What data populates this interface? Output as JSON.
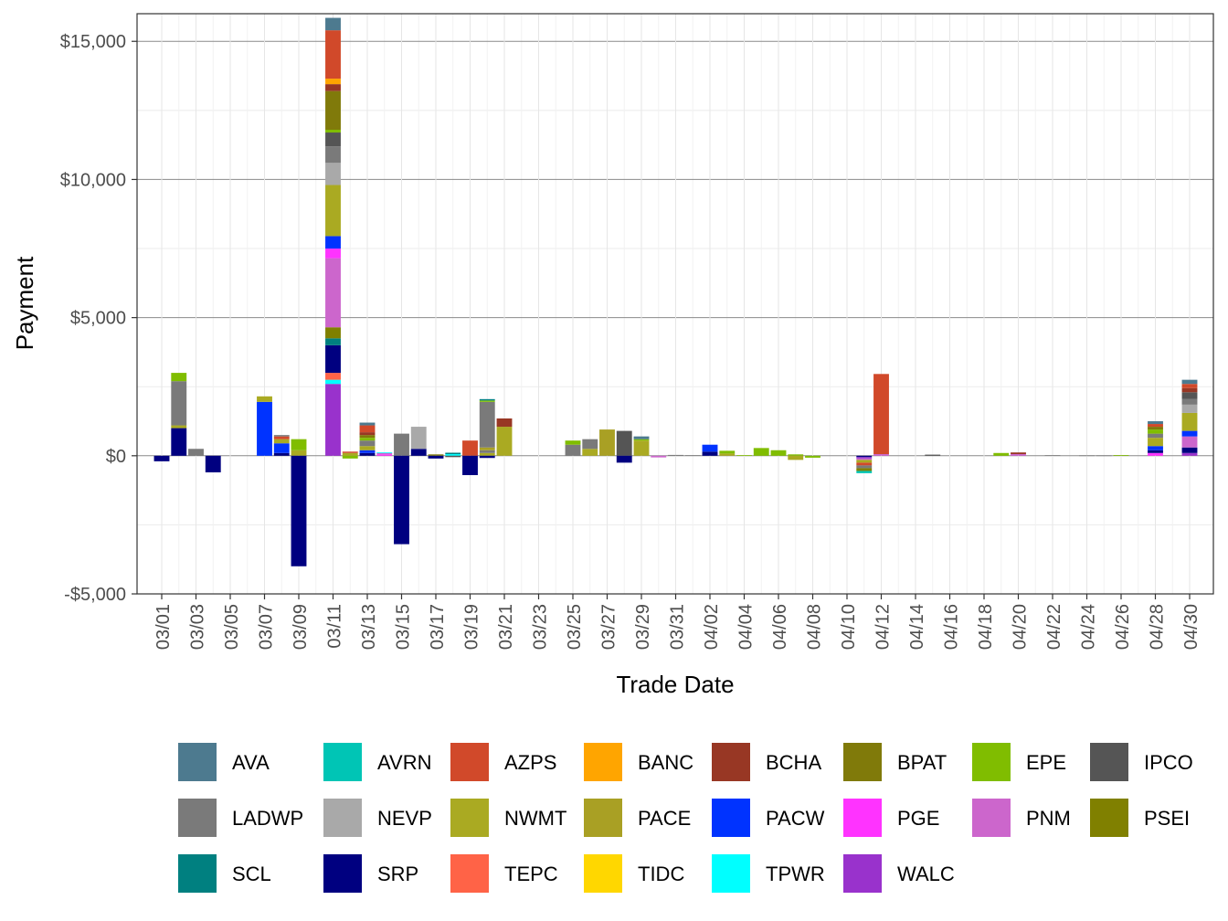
{
  "chart_data": {
    "type": "bar",
    "stacked": true,
    "xlabel": "Trade Date",
    "ylabel": "Payment",
    "ylim": [
      -5000,
      16000
    ],
    "yticks": [
      -5000,
      0,
      5000,
      10000,
      15000
    ],
    "ytick_labels": [
      "-$5,000",
      "$0",
      "$5,000",
      "$10,000",
      "$15,000"
    ],
    "dates": [
      "03/01",
      "03/02",
      "03/03",
      "03/04",
      "03/05",
      "03/06",
      "03/07",
      "03/08",
      "03/09",
      "03/10",
      "03/11",
      "03/12",
      "03/13",
      "03/14",
      "03/15",
      "03/16",
      "03/17",
      "03/18",
      "03/19",
      "03/20",
      "03/21",
      "03/22",
      "03/23",
      "03/24",
      "03/25",
      "03/26",
      "03/27",
      "03/28",
      "03/29",
      "03/30",
      "03/31",
      "04/01",
      "04/02",
      "04/03",
      "04/04",
      "04/05",
      "04/06",
      "04/07",
      "04/08",
      "04/09",
      "04/10",
      "04/11",
      "04/12",
      "04/13",
      "04/14",
      "04/15",
      "04/16",
      "04/17",
      "04/18",
      "04/19",
      "04/20",
      "04/21",
      "04/22",
      "04/23",
      "04/24",
      "04/25",
      "04/26",
      "04/27",
      "04/28",
      "04/29",
      "04/30"
    ],
    "xtick_labels": [
      "03/01",
      "03/03",
      "03/05",
      "03/07",
      "03/09",
      "03/11",
      "03/13",
      "03/15",
      "03/17",
      "03/19",
      "03/21",
      "03/23",
      "03/25",
      "03/27",
      "03/29",
      "03/31",
      "04/02",
      "04/04",
      "04/06",
      "04/08",
      "04/10",
      "04/12",
      "04/14",
      "04/16",
      "04/18",
      "04/20",
      "04/22",
      "04/24",
      "04/26",
      "04/28",
      "04/30"
    ],
    "legend": [
      {
        "name": "AVA",
        "color": "#4D7A8F"
      },
      {
        "name": "AVRN",
        "color": "#00C5B5"
      },
      {
        "name": "AZPS",
        "color": "#D1492A"
      },
      {
        "name": "BANC",
        "color": "#FFA500"
      },
      {
        "name": "BCHA",
        "color": "#983724"
      },
      {
        "name": "BPAT",
        "color": "#807A0A"
      },
      {
        "name": "EPE",
        "color": "#80BD00"
      },
      {
        "name": "IPCO",
        "color": "#555555"
      },
      {
        "name": "LADWP",
        "color": "#7A7A7A"
      },
      {
        "name": "NEVP",
        "color": "#A9A9A9"
      },
      {
        "name": "NWMT",
        "color": "#AAAA22"
      },
      {
        "name": "PACE",
        "color": "#A9A024"
      },
      {
        "name": "PACW",
        "color": "#0033FF"
      },
      {
        "name": "PGE",
        "color": "#FF33FF"
      },
      {
        "name": "PNM",
        "color": "#CC66CC"
      },
      {
        "name": "PSEI",
        "color": "#808000"
      },
      {
        "name": "SCL",
        "color": "#008080"
      },
      {
        "name": "SRP",
        "color": "#000080"
      },
      {
        "name": "TEPC",
        "color": "#FF6347"
      },
      {
        "name": "TIDC",
        "color": "#FFD700"
      },
      {
        "name": "TPWR",
        "color": "#00FFFF"
      },
      {
        "name": "WALC",
        "color": "#9932CC"
      }
    ],
    "bars": [
      {
        "date": "03/01",
        "segments": [
          {
            "bea": "SRP",
            "value": -200
          }
        ]
      },
      {
        "date": "03/02",
        "segments": [
          {
            "bea": "SRP",
            "value": 1000
          },
          {
            "bea": "NWMT",
            "value": 100
          },
          {
            "bea": "LADWP",
            "value": 1600
          },
          {
            "bea": "EPE",
            "value": 300
          }
        ]
      },
      {
        "date": "03/03",
        "segments": [
          {
            "bea": "LADWP",
            "value": 250
          }
        ]
      },
      {
        "date": "03/04",
        "segments": [
          {
            "bea": "SRP",
            "value": -600
          }
        ]
      },
      {
        "date": "03/07",
        "segments": [
          {
            "bea": "PACW",
            "value": 1950
          },
          {
            "bea": "NWMT",
            "value": 200
          }
        ]
      },
      {
        "date": "03/08",
        "segments": [
          {
            "bea": "SRP",
            "value": 100
          },
          {
            "bea": "PACW",
            "value": 350
          },
          {
            "bea": "NWMT",
            "value": 150
          },
          {
            "bea": "AZPS",
            "value": 100
          },
          {
            "bea": "LADWP",
            "value": 50
          }
        ]
      },
      {
        "date": "03/09",
        "segments": [
          {
            "bea": "NWMT",
            "value": 200
          },
          {
            "bea": "EPE",
            "value": 400
          },
          {
            "bea": "SRP",
            "value": -4000
          }
        ]
      },
      {
        "date": "03/11",
        "segments": [
          {
            "bea": "WALC",
            "value": 2600
          },
          {
            "bea": "TPWR",
            "value": 150
          },
          {
            "bea": "TEPC",
            "value": 250
          },
          {
            "bea": "SRP",
            "value": 1000
          },
          {
            "bea": "SCL",
            "value": 250
          },
          {
            "bea": "PSEI",
            "value": 400
          },
          {
            "bea": "PNM",
            "value": 2500
          },
          {
            "bea": "PGE",
            "value": 350
          },
          {
            "bea": "PACW",
            "value": 450
          },
          {
            "bea": "NWMT",
            "value": 1850
          },
          {
            "bea": "NEVP",
            "value": 800
          },
          {
            "bea": "LADWP",
            "value": 600
          },
          {
            "bea": "IPCO",
            "value": 500
          },
          {
            "bea": "EPE",
            "value": 100
          },
          {
            "bea": "BPAT",
            "value": 1400
          },
          {
            "bea": "BCHA",
            "value": 250
          },
          {
            "bea": "BANC",
            "value": 200
          },
          {
            "bea": "AZPS",
            "value": 1750
          },
          {
            "bea": "AVA",
            "value": 450
          }
        ]
      },
      {
        "date": "03/12",
        "segments": [
          {
            "bea": "NWMT",
            "value": 100
          },
          {
            "bea": "AZPS",
            "value": 50
          },
          {
            "bea": "EPE",
            "value": -100
          }
        ]
      },
      {
        "date": "03/13",
        "segments": [
          {
            "bea": "SRP",
            "value": 100
          },
          {
            "bea": "PACW",
            "value": 100
          },
          {
            "bea": "NWMT",
            "value": 150
          },
          {
            "bea": "LADWP",
            "value": 200
          },
          {
            "bea": "EPE",
            "value": 100
          },
          {
            "bea": "BPAT",
            "value": 100
          },
          {
            "bea": "BCHA",
            "value": 100
          },
          {
            "bea": "AZPS",
            "value": 250
          },
          {
            "bea": "AVA",
            "value": 100
          }
        ]
      },
      {
        "date": "03/14",
        "segments": [
          {
            "bea": "PGE",
            "value": 50
          },
          {
            "bea": "PNM",
            "value": 50
          },
          {
            "bea": "TPWR",
            "value": 20
          }
        ]
      },
      {
        "date": "03/15",
        "segments": [
          {
            "bea": "LADWP",
            "value": 800
          },
          {
            "bea": "SRP",
            "value": -3200
          }
        ]
      },
      {
        "date": "03/16",
        "segments": [
          {
            "bea": "SRP",
            "value": 250
          },
          {
            "bea": "NEVP",
            "value": 800
          }
        ]
      },
      {
        "date": "03/17",
        "segments": [
          {
            "bea": "BPAT",
            "value": 50
          },
          {
            "bea": "SRP",
            "value": -100
          }
        ]
      },
      {
        "date": "03/18",
        "segments": [
          {
            "bea": "TPWR",
            "value": 60
          },
          {
            "bea": "SCL",
            "value": 50
          },
          {
            "bea": "IPCO",
            "value": -50
          }
        ]
      },
      {
        "date": "03/19",
        "segments": [
          {
            "bea": "AZPS",
            "value": 550
          },
          {
            "bea": "SRP",
            "value": -700
          }
        ]
      },
      {
        "date": "03/20",
        "segments": [
          {
            "bea": "NWMT",
            "value": 100
          },
          {
            "bea": "LADWP",
            "value": 100
          },
          {
            "bea": "PACE",
            "value": 100
          },
          {
            "bea": "LADWP",
            "value": 1650
          },
          {
            "bea": "EPE",
            "value": 50
          },
          {
            "bea": "SCL",
            "value": 50
          },
          {
            "bea": "SRP",
            "value": -80
          }
        ]
      },
      {
        "date": "03/21",
        "segments": [
          {
            "bea": "NWMT",
            "value": 1050
          },
          {
            "bea": "BCHA",
            "value": 300
          }
        ]
      },
      {
        "date": "03/25",
        "segments": [
          {
            "bea": "LADWP",
            "value": 400
          },
          {
            "bea": "EPE",
            "value": 150
          }
        ]
      },
      {
        "date": "03/26",
        "segments": [
          {
            "bea": "NWMT",
            "value": 250
          },
          {
            "bea": "LADWP",
            "value": 350
          }
        ]
      },
      {
        "date": "03/27",
        "segments": [
          {
            "bea": "PACE",
            "value": 950
          }
        ]
      },
      {
        "date": "03/28",
        "segments": [
          {
            "bea": "IPCO",
            "value": 900
          },
          {
            "bea": "SRP",
            "value": -250
          }
        ]
      },
      {
        "date": "03/29",
        "segments": [
          {
            "bea": "NWMT",
            "value": 550
          },
          {
            "bea": "EPE",
            "value": 50
          },
          {
            "bea": "AVA",
            "value": 100
          }
        ]
      },
      {
        "date": "03/30",
        "segments": [
          {
            "bea": "PNM",
            "value": -60
          }
        ]
      },
      {
        "date": "03/31",
        "segments": [
          {
            "bea": "LADWP",
            "value": 30
          }
        ]
      },
      {
        "date": "04/01",
        "segments": [
          {
            "bea": "LADWP",
            "value": 20
          }
        ]
      },
      {
        "date": "04/02",
        "segments": [
          {
            "bea": "SRP",
            "value": 150
          },
          {
            "bea": "PACW",
            "value": 250
          }
        ]
      },
      {
        "date": "04/03",
        "segments": [
          {
            "bea": "NWMT",
            "value": 80
          },
          {
            "bea": "EPE",
            "value": 100
          }
        ]
      },
      {
        "date": "04/04",
        "segments": [
          {
            "bea": "EPE",
            "value": 20
          }
        ]
      },
      {
        "date": "04/05",
        "segments": [
          {
            "bea": "EPE",
            "value": 280
          }
        ]
      },
      {
        "date": "04/06",
        "segments": [
          {
            "bea": "EPE",
            "value": 200
          }
        ]
      },
      {
        "date": "04/07",
        "segments": [
          {
            "bea": "EPE",
            "value": 50
          },
          {
            "bea": "NWMT",
            "value": -150
          }
        ]
      },
      {
        "date": "04/08",
        "segments": [
          {
            "bea": "EPE",
            "value": -70
          }
        ]
      },
      {
        "date": "04/11",
        "segments": [
          {
            "bea": "SRP",
            "value": -50
          },
          {
            "bea": "WALC",
            "value": -50
          },
          {
            "bea": "PNM",
            "value": -50
          },
          {
            "bea": "NWMT",
            "value": -100
          },
          {
            "bea": "AZPS",
            "value": -100
          },
          {
            "bea": "LADWP",
            "value": -100
          },
          {
            "bea": "PSEI",
            "value": -100
          },
          {
            "bea": "AVRN",
            "value": -80
          }
        ]
      },
      {
        "date": "04/12",
        "segments": [
          {
            "bea": "PNM",
            "value": 60
          },
          {
            "bea": "AZPS",
            "value": 2900
          }
        ]
      },
      {
        "date": "04/15",
        "segments": [
          {
            "bea": "IPCO",
            "value": 40
          }
        ]
      },
      {
        "date": "04/19",
        "segments": [
          {
            "bea": "EPE",
            "value": 100
          }
        ]
      },
      {
        "date": "04/20",
        "segments": [
          {
            "bea": "PNM",
            "value": 60
          },
          {
            "bea": "BCHA",
            "value": 60
          }
        ]
      },
      {
        "date": "04/22",
        "segments": [
          {
            "bea": "LADWP",
            "value": 20
          }
        ]
      },
      {
        "date": "04/24",
        "segments": [
          {
            "bea": "LADWP",
            "value": 15
          }
        ]
      },
      {
        "date": "04/25",
        "segments": [
          {
            "bea": "LADWP",
            "value": 15
          }
        ]
      },
      {
        "date": "04/26",
        "segments": [
          {
            "bea": "EPE",
            "value": 25
          }
        ]
      },
      {
        "date": "04/28",
        "segments": [
          {
            "bea": "PGE",
            "value": 100
          },
          {
            "bea": "SRP",
            "value": 100
          },
          {
            "bea": "PACW",
            "value": 150
          },
          {
            "bea": "NWMT",
            "value": 300
          },
          {
            "bea": "LADWP",
            "value": 150
          },
          {
            "bea": "EPE",
            "value": 150
          },
          {
            "bea": "BPAT",
            "value": 100
          },
          {
            "bea": "AZPS",
            "value": 100
          },
          {
            "bea": "AVA",
            "value": 100
          }
        ]
      },
      {
        "date": "04/30",
        "segments": [
          {
            "bea": "WALC",
            "value": 100
          },
          {
            "bea": "SRP",
            "value": 200
          },
          {
            "bea": "PNM",
            "value": 400
          },
          {
            "bea": "PACW",
            "value": 200
          },
          {
            "bea": "NWMT",
            "value": 650
          },
          {
            "bea": "NEVP",
            "value": 300
          },
          {
            "bea": "LADWP",
            "value": 200
          },
          {
            "bea": "IPCO",
            "value": 250
          },
          {
            "bea": "BCHA",
            "value": 150
          },
          {
            "bea": "AZPS",
            "value": 150
          },
          {
            "bea": "AVA",
            "value": 150
          }
        ]
      }
    ]
  }
}
